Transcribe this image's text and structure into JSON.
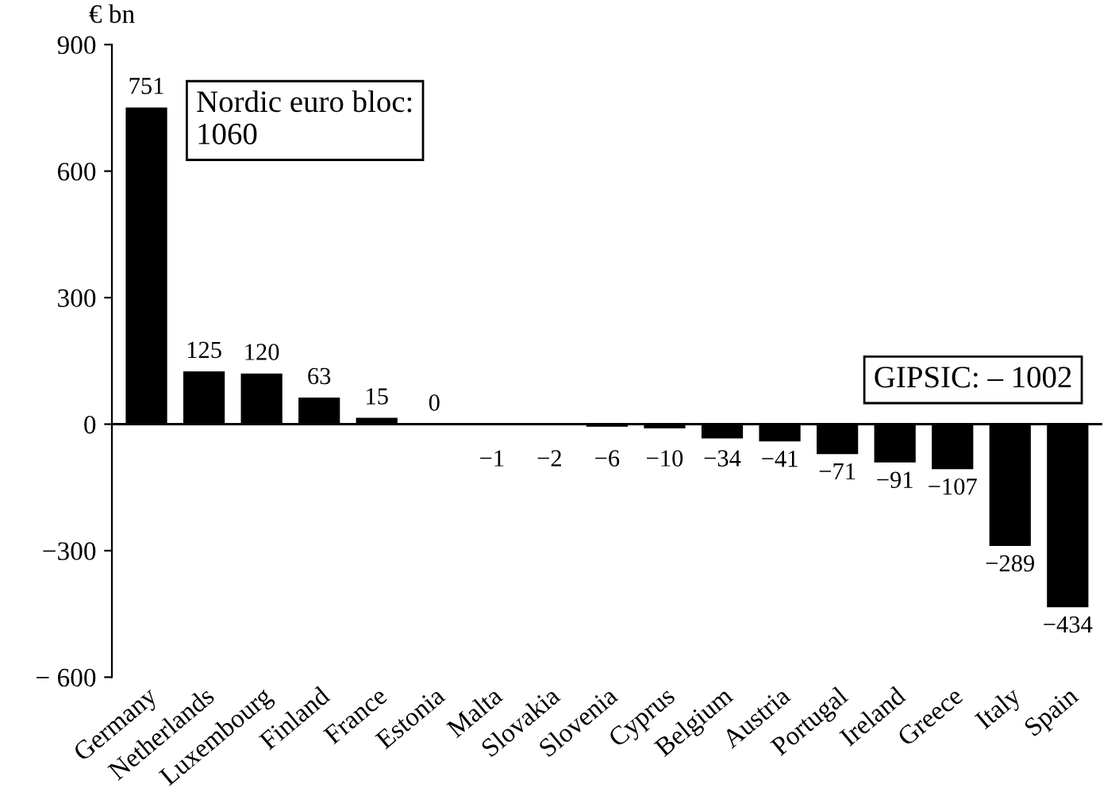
{
  "chart_data": {
    "type": "bar",
    "ylabel": "€ bn",
    "categories": [
      "Germany",
      "Netherlands",
      "Luxembourg",
      "Finland",
      "France",
      "Estonia",
      "Malta",
      "Slovakia",
      "Slovenia",
      "Cyprus",
      "Belgium",
      "Austria",
      "Portugal",
      "Ireland",
      "Greece",
      "Italy",
      "Spain"
    ],
    "values": [
      751,
      125,
      120,
      63,
      15,
      0,
      -1,
      -2,
      -6,
      -10,
      -34,
      -41,
      -71,
      -91,
      -107,
      -289,
      -434
    ],
    "value_labels": [
      "751",
      "125",
      "120",
      "63",
      "15",
      "0",
      "−1",
      "−2",
      "−6",
      "−10",
      "−34",
      "−41",
      "−71",
      "−91",
      "−107",
      "−289",
      "−434"
    ],
    "color": "#000000",
    "ylim": [
      -600,
      900
    ],
    "yticks": [
      {
        "value": -600,
        "label": "− 600"
      },
      {
        "value": -300,
        "label": "−300"
      },
      0,
      300,
      600,
      900
    ],
    "ref_lines": [
      {
        "axis": "y",
        "value": 0,
        "color": "#000000"
      }
    ],
    "annotations": [
      "Nordic euro bloc:\n1060",
      "GIPSIC: – 1002"
    ],
    "grid": false,
    "legend": false
  }
}
